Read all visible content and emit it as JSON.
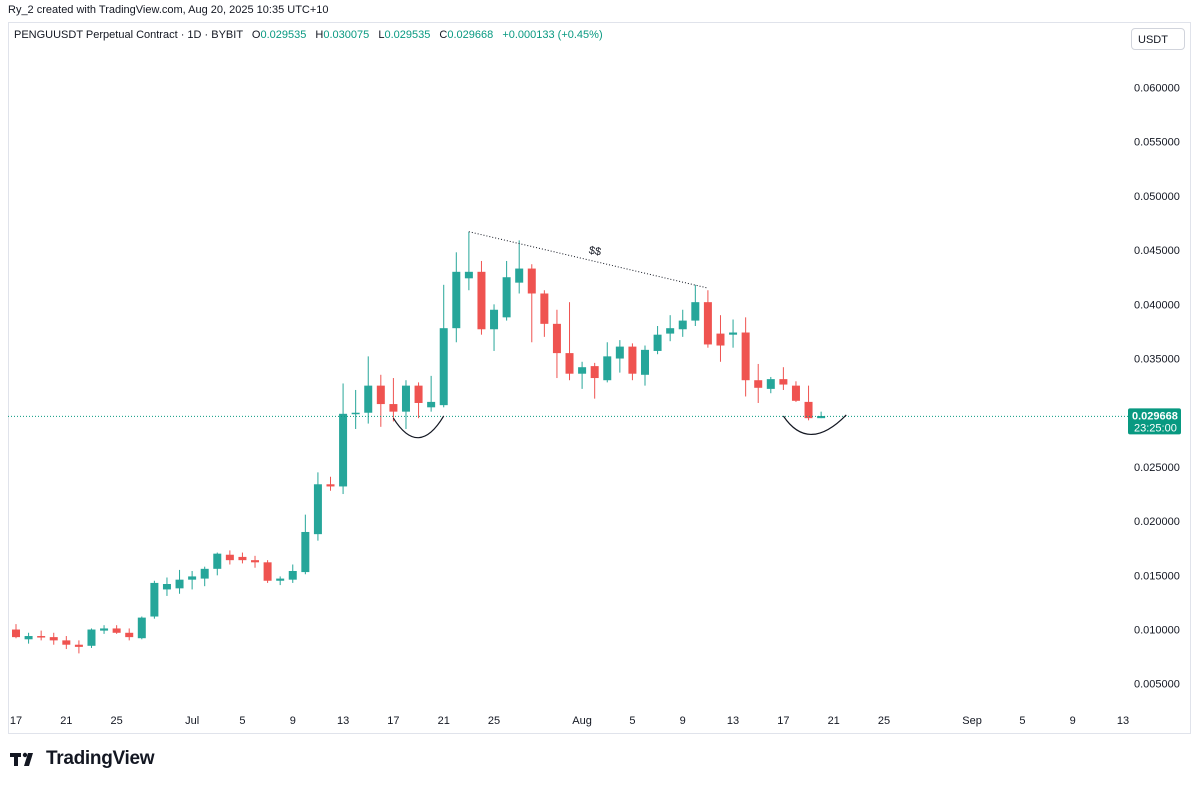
{
  "attribution": "Ry_2 created with TradingView.com, Aug 20, 2025 10:35 UTC+10",
  "legend": {
    "symbol": "PENGUUSDT Perpetual Contract · 1D · BYBIT",
    "open_label": "O",
    "open": "0.029535",
    "high_label": "H",
    "high": "0.030075",
    "low_label": "L",
    "low": "0.029535",
    "close_label": "C",
    "close": "0.029668",
    "change": "+0.000133 (+0.45%)"
  },
  "currency": "USDT",
  "brand": "TradingView",
  "annotation_text": "$$",
  "last_price": {
    "value": "0.029668",
    "countdown": "23:25:00"
  },
  "colors": {
    "up": "#26a69a",
    "down": "#ef5350",
    "up_text": "#089981",
    "price_tag": "#089981"
  },
  "chart_data": {
    "type": "candlestick",
    "y_ticks": [
      "0.005000",
      "0.010000",
      "0.015000",
      "0.020000",
      "0.025000",
      "0.030000",
      "0.035000",
      "0.040000",
      "0.045000",
      "0.050000",
      "0.055000",
      "0.060000"
    ],
    "x_ticks": [
      {
        "label": "17",
        "day": 17
      },
      {
        "label": "21",
        "day": 21
      },
      {
        "label": "25",
        "day": 25
      },
      {
        "label": "Jul",
        "day": 31
      },
      {
        "label": "5",
        "day": 35
      },
      {
        "label": "9",
        "day": 39
      },
      {
        "label": "13",
        "day": 43
      },
      {
        "label": "17",
        "day": 47
      },
      {
        "label": "21",
        "day": 51
      },
      {
        "label": "25",
        "day": 55
      },
      {
        "label": "Aug",
        "day": 62
      },
      {
        "label": "5",
        "day": 66
      },
      {
        "label": "9",
        "day": 70
      },
      {
        "label": "13",
        "day": 74
      },
      {
        "label": "17",
        "day": 78
      },
      {
        "label": "21",
        "day": 82
      },
      {
        "label": "25",
        "day": 86
      },
      {
        "label": "Sep",
        "day": 93
      },
      {
        "label": "5",
        "day": 97
      },
      {
        "label": "9",
        "day": 101
      },
      {
        "label": "13",
        "day": 105
      }
    ],
    "candles": [
      {
        "d": 17,
        "o": 0.01,
        "h": 0.0105,
        "l": 0.0092,
        "c": 0.0093
      },
      {
        "d": 18,
        "o": 0.0091,
        "h": 0.0097,
        "l": 0.0087,
        "c": 0.0094
      },
      {
        "d": 19,
        "o": 0.0094,
        "h": 0.0099,
        "l": 0.009,
        "c": 0.0093
      },
      {
        "d": 20,
        "o": 0.0093,
        "h": 0.0097,
        "l": 0.0086,
        "c": 0.009
      },
      {
        "d": 21,
        "o": 0.009,
        "h": 0.0094,
        "l": 0.0082,
        "c": 0.0086
      },
      {
        "d": 22,
        "o": 0.0086,
        "h": 0.009,
        "l": 0.0078,
        "c": 0.0084
      },
      {
        "d": 23,
        "o": 0.0085,
        "h": 0.0101,
        "l": 0.0083,
        "c": 0.01
      },
      {
        "d": 24,
        "o": 0.0099,
        "h": 0.0104,
        "l": 0.0096,
        "c": 0.0101
      },
      {
        "d": 25,
        "o": 0.0101,
        "h": 0.0104,
        "l": 0.0096,
        "c": 0.0097
      },
      {
        "d": 26,
        "o": 0.0097,
        "h": 0.0101,
        "l": 0.009,
        "c": 0.0093
      },
      {
        "d": 27,
        "o": 0.0092,
        "h": 0.0112,
        "l": 0.0091,
        "c": 0.0111
      },
      {
        "d": 28,
        "o": 0.0112,
        "h": 0.0145,
        "l": 0.011,
        "c": 0.0143
      },
      {
        "d": 29,
        "o": 0.0137,
        "h": 0.0148,
        "l": 0.0131,
        "c": 0.0142
      },
      {
        "d": 30,
        "o": 0.0138,
        "h": 0.0155,
        "l": 0.0133,
        "c": 0.0146
      },
      {
        "d": 31,
        "o": 0.0146,
        "h": 0.0154,
        "l": 0.0137,
        "c": 0.0149
      },
      {
        "d": 32,
        "o": 0.0147,
        "h": 0.0158,
        "l": 0.014,
        "c": 0.0156
      },
      {
        "d": 33,
        "o": 0.0156,
        "h": 0.0171,
        "l": 0.015,
        "c": 0.017
      },
      {
        "d": 34,
        "o": 0.0169,
        "h": 0.0173,
        "l": 0.016,
        "c": 0.0164
      },
      {
        "d": 35,
        "o": 0.0167,
        "h": 0.0171,
        "l": 0.0161,
        "c": 0.0164
      },
      {
        "d": 36,
        "o": 0.0164,
        "h": 0.0168,
        "l": 0.0157,
        "c": 0.0162
      },
      {
        "d": 37,
        "o": 0.0162,
        "h": 0.0164,
        "l": 0.0143,
        "c": 0.0145
      },
      {
        "d": 38,
        "o": 0.0145,
        "h": 0.0149,
        "l": 0.0141,
        "c": 0.0147
      },
      {
        "d": 39,
        "o": 0.0146,
        "h": 0.016,
        "l": 0.0143,
        "c": 0.0154
      },
      {
        "d": 40,
        "o": 0.0153,
        "h": 0.0206,
        "l": 0.0151,
        "c": 0.019
      },
      {
        "d": 41,
        "o": 0.0188,
        "h": 0.0245,
        "l": 0.0182,
        "c": 0.0234
      },
      {
        "d": 42,
        "o": 0.0234,
        "h": 0.0241,
        "l": 0.0228,
        "c": 0.0232
      },
      {
        "d": 43,
        "o": 0.0232,
        "h": 0.0327,
        "l": 0.0225,
        "c": 0.0299
      },
      {
        "d": 44,
        "o": 0.0299,
        "h": 0.0321,
        "l": 0.0285,
        "c": 0.03
      },
      {
        "d": 45,
        "o": 0.03,
        "h": 0.0352,
        "l": 0.029,
        "c": 0.0325
      },
      {
        "d": 46,
        "o": 0.0325,
        "h": 0.0335,
        "l": 0.0287,
        "c": 0.0308
      },
      {
        "d": 47,
        "o": 0.0308,
        "h": 0.0332,
        "l": 0.0292,
        "c": 0.0301
      },
      {
        "d": 48,
        "o": 0.0301,
        "h": 0.033,
        "l": 0.0285,
        "c": 0.0325
      },
      {
        "d": 49,
        "o": 0.0325,
        "h": 0.0328,
        "l": 0.0295,
        "c": 0.0309
      },
      {
        "d": 50,
        "o": 0.0305,
        "h": 0.0334,
        "l": 0.0301,
        "c": 0.031
      },
      {
        "d": 51,
        "o": 0.0307,
        "h": 0.0418,
        "l": 0.0305,
        "c": 0.0378
      },
      {
        "d": 52,
        "o": 0.0378,
        "h": 0.0448,
        "l": 0.0365,
        "c": 0.043
      },
      {
        "d": 53,
        "o": 0.0424,
        "h": 0.0467,
        "l": 0.0413,
        "c": 0.043
      },
      {
        "d": 54,
        "o": 0.043,
        "h": 0.044,
        "l": 0.0372,
        "c": 0.0377
      },
      {
        "d": 55,
        "o": 0.0377,
        "h": 0.04,
        "l": 0.0357,
        "c": 0.0395
      },
      {
        "d": 56,
        "o": 0.0388,
        "h": 0.044,
        "l": 0.0385,
        "c": 0.0425
      },
      {
        "d": 57,
        "o": 0.042,
        "h": 0.0459,
        "l": 0.041,
        "c": 0.0433
      },
      {
        "d": 58,
        "o": 0.0433,
        "h": 0.0437,
        "l": 0.0365,
        "c": 0.041
      },
      {
        "d": 59,
        "o": 0.041,
        "h": 0.0413,
        "l": 0.037,
        "c": 0.0382
      },
      {
        "d": 60,
        "o": 0.0382,
        "h": 0.0395,
        "l": 0.0332,
        "c": 0.0355
      },
      {
        "d": 61,
        "o": 0.0355,
        "h": 0.0402,
        "l": 0.033,
        "c": 0.0336
      },
      {
        "d": 62,
        "o": 0.0336,
        "h": 0.0347,
        "l": 0.0322,
        "c": 0.0342
      },
      {
        "d": 63,
        "o": 0.0343,
        "h": 0.0346,
        "l": 0.0313,
        "c": 0.0332
      },
      {
        "d": 64,
        "o": 0.033,
        "h": 0.0365,
        "l": 0.0328,
        "c": 0.0352
      },
      {
        "d": 65,
        "o": 0.035,
        "h": 0.0367,
        "l": 0.0337,
        "c": 0.0361
      },
      {
        "d": 66,
        "o": 0.0361,
        "h": 0.0364,
        "l": 0.033,
        "c": 0.0336
      },
      {
        "d": 67,
        "o": 0.0335,
        "h": 0.0362,
        "l": 0.0325,
        "c": 0.0358
      },
      {
        "d": 68,
        "o": 0.0357,
        "h": 0.038,
        "l": 0.0354,
        "c": 0.0372
      },
      {
        "d": 69,
        "o": 0.0373,
        "h": 0.039,
        "l": 0.0366,
        "c": 0.0378
      },
      {
        "d": 70,
        "o": 0.0377,
        "h": 0.0395,
        "l": 0.037,
        "c": 0.0385
      },
      {
        "d": 71,
        "o": 0.0385,
        "h": 0.0418,
        "l": 0.038,
        "c": 0.0402
      },
      {
        "d": 72,
        "o": 0.0402,
        "h": 0.0413,
        "l": 0.036,
        "c": 0.0363
      },
      {
        "d": 73,
        "o": 0.0373,
        "h": 0.039,
        "l": 0.0347,
        "c": 0.0362
      },
      {
        "d": 74,
        "o": 0.0372,
        "h": 0.0386,
        "l": 0.036,
        "c": 0.0374
      },
      {
        "d": 75,
        "o": 0.0374,
        "h": 0.0388,
        "l": 0.0315,
        "c": 0.033
      },
      {
        "d": 76,
        "o": 0.033,
        "h": 0.0345,
        "l": 0.0309,
        "c": 0.0323
      },
      {
        "d": 77,
        "o": 0.0322,
        "h": 0.0333,
        "l": 0.0318,
        "c": 0.0331
      },
      {
        "d": 78,
        "o": 0.0331,
        "h": 0.0342,
        "l": 0.0321,
        "c": 0.0326
      },
      {
        "d": 79,
        "o": 0.0325,
        "h": 0.0329,
        "l": 0.031,
        "c": 0.0311
      },
      {
        "d": 80,
        "o": 0.031,
        "h": 0.0325,
        "l": 0.0293,
        "c": 0.0295
      },
      {
        "d": 81,
        "o": 0.0295,
        "h": 0.0301,
        "l": 0.0295,
        "c": 0.0297
      }
    ],
    "trendline": {
      "from": {
        "d": 53,
        "y": 0.0467
      },
      "to": {
        "d": 72,
        "y": 0.0415
      }
    },
    "arcs": [
      {
        "from": {
          "d": 47,
          "y": 0.0295
        },
        "bottom": {
          "d": 49,
          "y": 0.0277
        },
        "to": {
          "d": 51,
          "y": 0.0297
        }
      },
      {
        "from": {
          "d": 78,
          "y": 0.0297
        },
        "bottom": {
          "d": 80,
          "y": 0.028
        },
        "to": {
          "d": 83,
          "y": 0.0298
        }
      }
    ]
  }
}
